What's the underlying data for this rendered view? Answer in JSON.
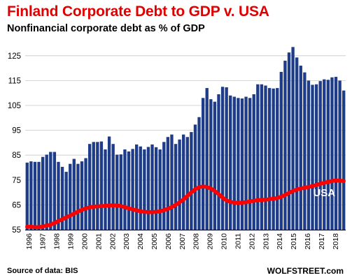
{
  "title": "Finland Corporate Debt to GDP v. USA",
  "subtitle": "Nonfinancial corporate debt as % of GDP",
  "source": "Source of data: BIS",
  "brand": "WOLFSTREET.com",
  "colors": {
    "title": "#e00000",
    "bars": "#1f3c88",
    "usa_line": "#ff0000",
    "grid": "#c8c8c8"
  },
  "chart_data": {
    "type": "bar",
    "ylim": [
      55,
      130
    ],
    "yticks": [
      55,
      65,
      75,
      85,
      95,
      105,
      115,
      125
    ],
    "years": [
      "1996",
      "1997",
      "1998",
      "1999",
      "2000",
      "2001",
      "2002",
      "2003",
      "2004",
      "2005",
      "2006",
      "2007",
      "2008",
      "2009",
      "2010",
      "2011",
      "2012",
      "2013",
      "2014",
      "2015",
      "2016",
      "2017",
      "2018"
    ],
    "grid": true,
    "series": [
      {
        "name": "",
        "type": "bar",
        "values": [
          82,
          82.5,
          82.3,
          82.3,
          84.3,
          85.2,
          86.3,
          86.3,
          82.3,
          80.3,
          78.3,
          81.5,
          83.5,
          81.5,
          82.5,
          83.8,
          89.5,
          90.3,
          90.3,
          90.5,
          87.3,
          92.5,
          89.5,
          85.2,
          85.3,
          87.3,
          86.5,
          87.5,
          89.3,
          88.5,
          87.3,
          88.3,
          89.3,
          88.2,
          87.3,
          90.3,
          92.3,
          93.3,
          89.5,
          91.3,
          93.3,
          92.3,
          94.3,
          97.3,
          100.3,
          108,
          112,
          107.5,
          106.5,
          109.5,
          112.5,
          112.3,
          109,
          108.5,
          108,
          107.8,
          108.5,
          108,
          109.5,
          113.5,
          113.5,
          113,
          112,
          111.8,
          112,
          118.5,
          123,
          126.3,
          128.5,
          124.3,
          121,
          118.3,
          115,
          113.3,
          113.5,
          114.8,
          115.5,
          115.3,
          116.3,
          116.5,
          115,
          111
        ]
      },
      {
        "name": "USA",
        "type": "line",
        "values": [
          56.2,
          56.2,
          56,
          56,
          56.3,
          56.7,
          57,
          57.7,
          58.5,
          59.2,
          60,
          60.7,
          61.5,
          62.3,
          63,
          63.6,
          64,
          64.3,
          64.4,
          64.5,
          64.6,
          64.8,
          64.8,
          64.8,
          64.5,
          64.1,
          63.6,
          63.2,
          62.8,
          62.4,
          62.2,
          62.1,
          62.1,
          62.2,
          62.4,
          62.9,
          63.4,
          64.1,
          65,
          66,
          67.2,
          68.6,
          70,
          71.3,
          72.1,
          72.4,
          72.2,
          71.6,
          70.6,
          69.3,
          67.9,
          66.8,
          66.2,
          65.9,
          65.9,
          65.9,
          66.1,
          66.4,
          66.6,
          66.9,
          67,
          67.1,
          67.3,
          67.5,
          67.8,
          68.3,
          69,
          69.8,
          70.6,
          71.2,
          71.6,
          71.9,
          72.2,
          72.6,
          73,
          73.5,
          73.9,
          74.2,
          74.6,
          74.9,
          74.7,
          74.6
        ]
      }
    ],
    "annotations": [
      "USA"
    ]
  }
}
